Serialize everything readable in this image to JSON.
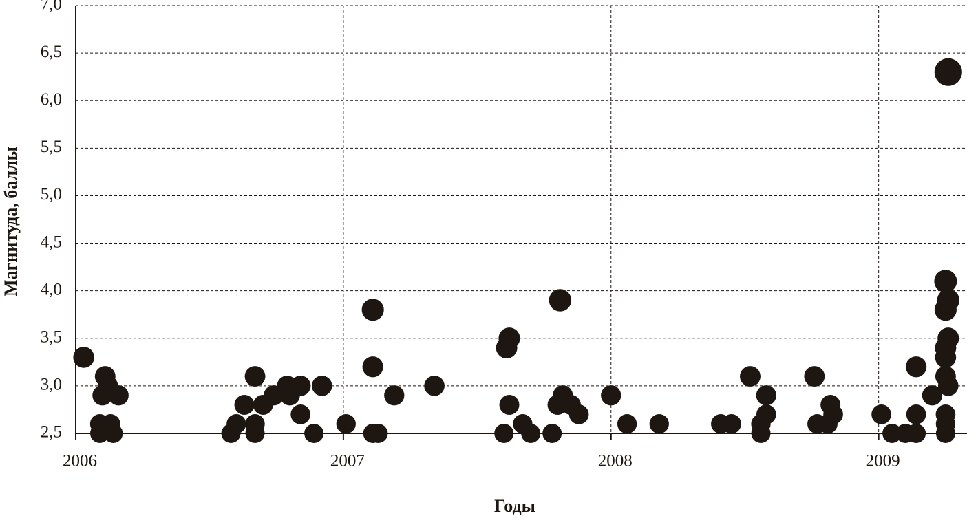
{
  "chart_data": {
    "type": "scatter",
    "x_label": "Годы",
    "y_label": "Магнитуда, баллы",
    "x": [
      2006.03,
      2006.09,
      2006.09,
      2006.11,
      2006.1,
      2006.12,
      2006.13,
      2006.14,
      2006.16,
      2006.58,
      2006.6,
      2006.63,
      2006.67,
      2006.67,
      2006.67,
      2006.7,
      2006.74,
      2006.79,
      2006.8,
      2006.84,
      2006.84,
      2006.89,
      2006.92,
      2007.01,
      2007.11,
      2007.11,
      2007.11,
      2007.13,
      2007.19,
      2007.34,
      2007.6,
      2007.61,
      2007.62,
      2007.62,
      2007.67,
      2007.7,
      2007.78,
      2007.81,
      2007.8,
      2007.82,
      2007.85,
      2007.88,
      2008.0,
      2008.06,
      2008.18,
      2008.41,
      2008.45,
      2008.52,
      2008.56,
      2008.56,
      2008.58,
      2008.58,
      2008.76,
      2008.77,
      2008.81,
      2008.82,
      2008.83,
      2009.01,
      2009.05,
      2009.1,
      2009.14,
      2009.14,
      2009.14,
      2009.2,
      2009.25,
      2009.25,
      2009.26,
      2009.26,
      2009.25,
      2009.25,
      2009.25,
      2009.26,
      2009.25,
      2009.25,
      2009.25,
      2009.26
    ],
    "values": [
      3.3,
      2.5,
      2.6,
      3.1,
      2.9,
      3.0,
      2.6,
      2.5,
      2.9,
      2.5,
      2.6,
      2.8,
      3.1,
      2.5,
      2.6,
      2.8,
      2.9,
      3.0,
      2.9,
      3.0,
      2.7,
      2.5,
      3.0,
      2.6,
      3.8,
      3.2,
      2.5,
      2.5,
      2.9,
      3.0,
      2.5,
      3.4,
      3.5,
      2.8,
      2.6,
      2.5,
      2.5,
      3.9,
      2.8,
      2.9,
      2.8,
      2.7,
      2.9,
      2.6,
      2.6,
      2.6,
      2.6,
      3.1,
      2.5,
      2.6,
      2.9,
      2.7,
      3.1,
      2.6,
      2.6,
      2.8,
      2.7,
      2.7,
      2.5,
      2.5,
      2.7,
      2.5,
      3.2,
      2.9,
      4.1,
      3.8,
      3.9,
      3.5,
      3.4,
      3.3,
      3.1,
      3.0,
      2.7,
      2.6,
      2.5,
      6.3
    ],
    "color": "#1e1610",
    "xlim": [
      2006,
      2009.33
    ],
    "xticks": [
      2006,
      2007,
      2008,
      2009
    ],
    "ylim": [
      2.5,
      7.0
    ],
    "yticks": [
      {
        "value": 2.5,
        "label": "2,5"
      },
      {
        "value": 3.0,
        "label": "3,0"
      },
      {
        "value": 3.5,
        "label": "3,5"
      },
      {
        "value": 4.0,
        "label": "4,0"
      },
      {
        "value": 4.5,
        "label": "4,5"
      },
      {
        "value": 5.0,
        "label": "5,0"
      },
      {
        "value": 5.5,
        "label": "5,5"
      },
      {
        "value": 6.0,
        "label": "6,0"
      },
      {
        "value": 6.5,
        "label": "6,5"
      },
      {
        "value": 7.0,
        "label": "7,0"
      }
    ],
    "grid": true
  }
}
